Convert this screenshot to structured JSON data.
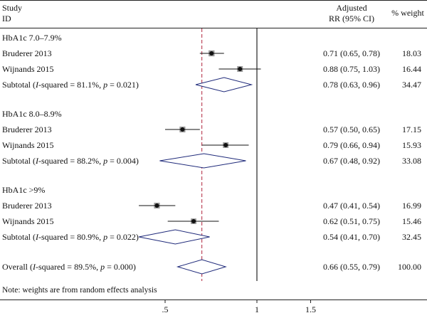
{
  "chart_data": {
    "type": "forest",
    "header": {
      "study_line1": "Study",
      "study_line2": "ID",
      "rr_line1": "Adjusted",
      "rr_line2": "RR (95% CI)",
      "weight": "% weight"
    },
    "axis": {
      "scale": "log",
      "ticks": [
        {
          "value": 0.5,
          "label": ".5"
        },
        {
          "value": 1,
          "label": "1"
        },
        {
          "value": 1.5,
          "label": "1.5"
        }
      ],
      "null_line": 1,
      "reference_line": 0.66
    },
    "rows": [
      {
        "kind": "group",
        "label": "HbA1c 7.0–7.9%"
      },
      {
        "kind": "study",
        "label": "Bruderer 2013",
        "rr": 0.71,
        "lo": 0.65,
        "hi": 0.78,
        "ci_text": "0.71 (0.65, 0.78)",
        "weight": "18.03"
      },
      {
        "kind": "study",
        "label": "Wijnands 2015",
        "rr": 0.88,
        "lo": 0.75,
        "hi": 1.03,
        "ci_text": "0.88 (0.75, 1.03)",
        "weight": "16.44"
      },
      {
        "kind": "subtotal",
        "label_prefix": "Subtotal (",
        "i2_letter": "I",
        "i2_value": "-squared = 81.1%, ",
        "p_letter": "p",
        "p_value": " = 0.021)",
        "rr": 0.78,
        "lo": 0.63,
        "hi": 0.96,
        "ci_text": "0.78 (0.63, 0.96)",
        "weight": "34.47"
      },
      {
        "kind": "group",
        "label": "HbA1c 8.0–8.9%"
      },
      {
        "kind": "study",
        "label": "Bruderer 2013",
        "rr": 0.57,
        "lo": 0.5,
        "hi": 0.65,
        "ci_text": "0.57 (0.50, 0.65)",
        "weight": "17.15"
      },
      {
        "kind": "study",
        "label": "Wijnands 2015",
        "rr": 0.79,
        "lo": 0.66,
        "hi": 0.94,
        "ci_text": "0.79 (0.66, 0.94)",
        "weight": "15.93"
      },
      {
        "kind": "subtotal",
        "label_prefix": "Subtotal (",
        "i2_letter": "I",
        "i2_value": "-squared = 88.2%, ",
        "p_letter": "p",
        "p_value": " = 0.004)",
        "rr": 0.67,
        "lo": 0.48,
        "hi": 0.92,
        "ci_text": "0.67 (0.48, 0.92)",
        "weight": "33.08"
      },
      {
        "kind": "group",
        "label": "HbA1c >9%"
      },
      {
        "kind": "study",
        "label": "Bruderer 2013",
        "rr": 0.47,
        "lo": 0.41,
        "hi": 0.54,
        "ci_text": "0.47 (0.41, 0.54)",
        "weight": "16.99"
      },
      {
        "kind": "study",
        "label": "Wijnands 2015",
        "rr": 0.62,
        "lo": 0.51,
        "hi": 0.75,
        "ci_text": "0.62 (0.51, 0.75)",
        "weight": "15.46"
      },
      {
        "kind": "subtotal",
        "label_prefix": "Subtotal (",
        "i2_letter": "I",
        "i2_value": "-squared = 80.9%, ",
        "p_letter": "p",
        "p_value": " = 0.022)",
        "rr": 0.54,
        "lo": 0.41,
        "hi": 0.7,
        "ci_text": "0.54 (0.41, 0.70)",
        "weight": "32.45"
      },
      {
        "kind": "overall",
        "label_prefix": "Overall (",
        "i2_letter": "I",
        "i2_value": "-squared = 89.5%, ",
        "p_letter": "p",
        "p_value": " = 0.000)",
        "rr": 0.66,
        "lo": 0.55,
        "hi": 0.79,
        "ci_text": "0.66 (0.55, 0.79)",
        "weight": "100.00"
      }
    ],
    "note": "Note: weights are from random effects analysis"
  }
}
